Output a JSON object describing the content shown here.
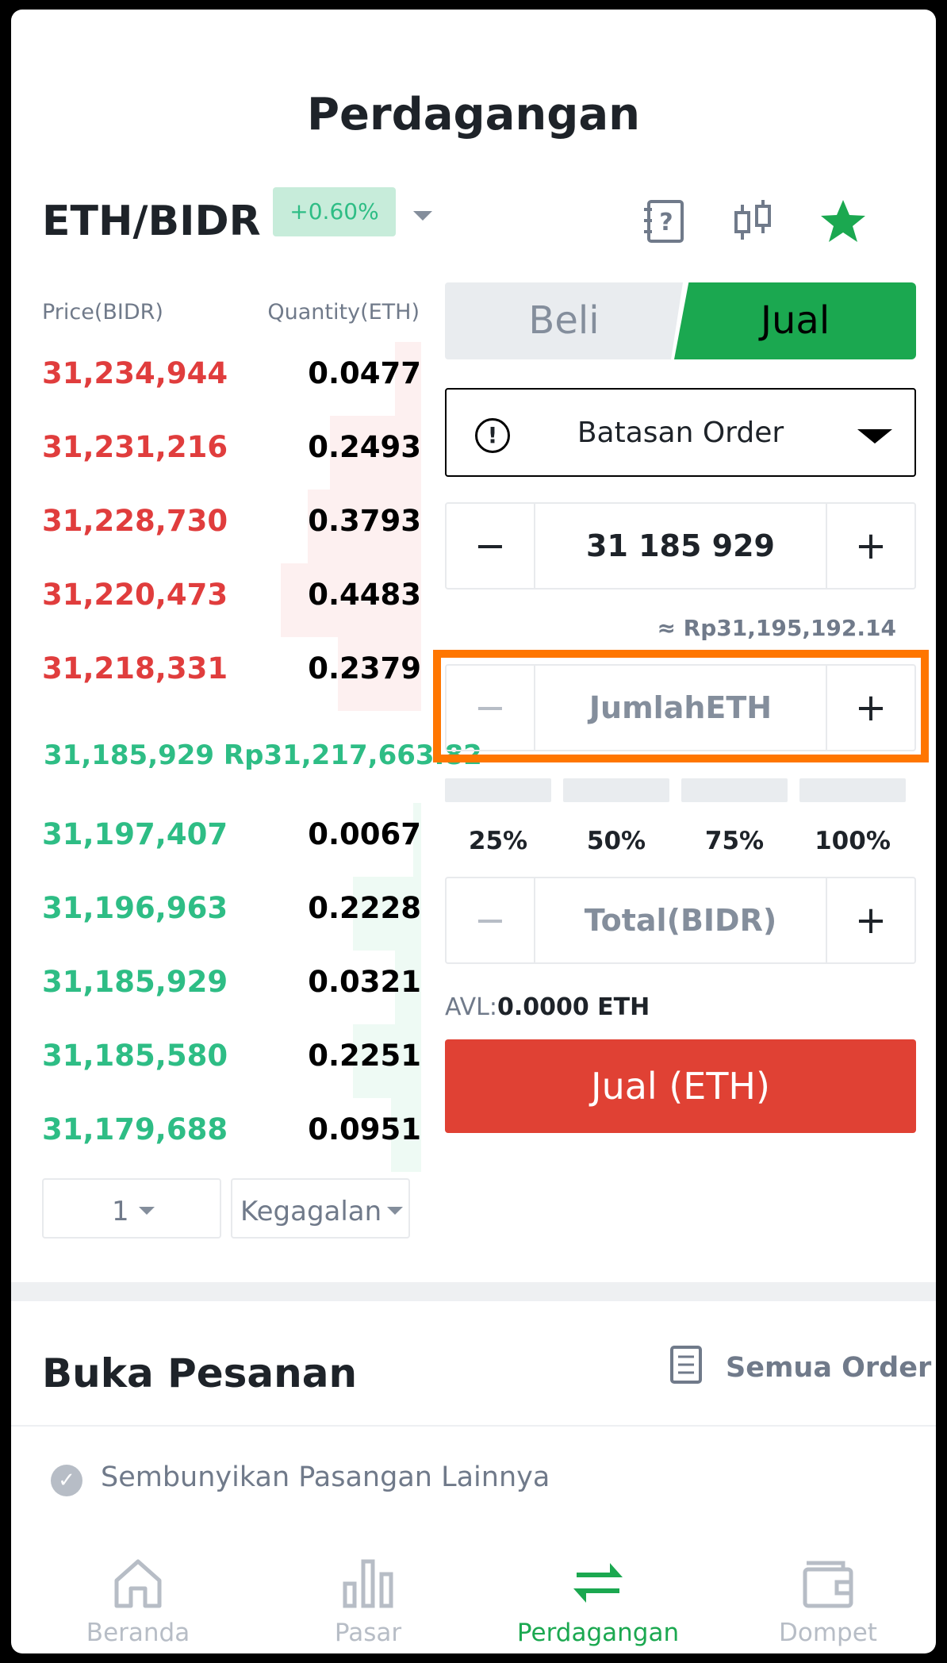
{
  "header": {
    "title": "Perdagangan"
  },
  "pair": {
    "name": "ETH/BIDR",
    "change": "+0.60%"
  },
  "icons": {
    "guide": "question-book-icon",
    "chart": "candlestick-icon",
    "favorite": "star-icon"
  },
  "colors": {
    "ask": "#e03d3d",
    "bid": "#2ebd85",
    "accent": "#1ba850",
    "sell": "#e04134",
    "highlight": "#ff7600"
  },
  "orderbook": {
    "price_header": "Price(BIDR)",
    "qty_header": "Quantity(ETH)",
    "asks": [
      {
        "price": "31,234,944",
        "qty": "0.0477",
        "depth": 0.07
      },
      {
        "price": "31,231,216",
        "qty": "0.2493",
        "depth": 0.24
      },
      {
        "price": "31,228,730",
        "qty": "0.3793",
        "depth": 0.3
      },
      {
        "price": "31,220,473",
        "qty": "0.4483",
        "depth": 0.37
      },
      {
        "price": "31,218,331",
        "qty": "0.2379",
        "depth": 0.22
      }
    ],
    "mid": "31,185,929 Rp31,217,663.82",
    "bids": [
      {
        "price": "31,197,407",
        "qty": "0.0067",
        "depth": 0.02
      },
      {
        "price": "31,196,963",
        "qty": "0.2228",
        "depth": 0.18
      },
      {
        "price": "31,185,929",
        "qty": "0.0321",
        "depth": 0.07
      },
      {
        "price": "31,185,580",
        "qty": "0.2251",
        "depth": 0.18
      },
      {
        "price": "31,179,688",
        "qty": "0.0951",
        "depth": 0.08
      }
    ],
    "precision": "1",
    "depth_mode": "Kegagalan"
  },
  "trade": {
    "buy_tab": "Beli",
    "sell_tab": "Jual",
    "order_type": "Batasan Order",
    "price_value": "31 185 929",
    "approx": "≈ Rp31,195,192.14",
    "amount_placeholder": "JumlahETH",
    "percents": [
      "25%",
      "50%",
      "75%",
      "100%"
    ],
    "total_placeholder": "Total(BIDR)",
    "avl_label": "AVL:",
    "avl_value": "0.0000 ETH",
    "sell_button": "Jual (ETH)",
    "minus": "−",
    "plus": "+"
  },
  "orders": {
    "title": "Buka Pesanan",
    "all_orders": "Semua Order",
    "hide_others": "Sembunyikan Pasangan Lainnya"
  },
  "nav": [
    {
      "label": "Beranda",
      "icon": "home-icon"
    },
    {
      "label": "Pasar",
      "icon": "bar-chart-icon"
    },
    {
      "label": "Perdagangan",
      "icon": "swap-arrows-icon",
      "active": true
    },
    {
      "label": "Dompet",
      "icon": "wallet-icon"
    }
  ]
}
